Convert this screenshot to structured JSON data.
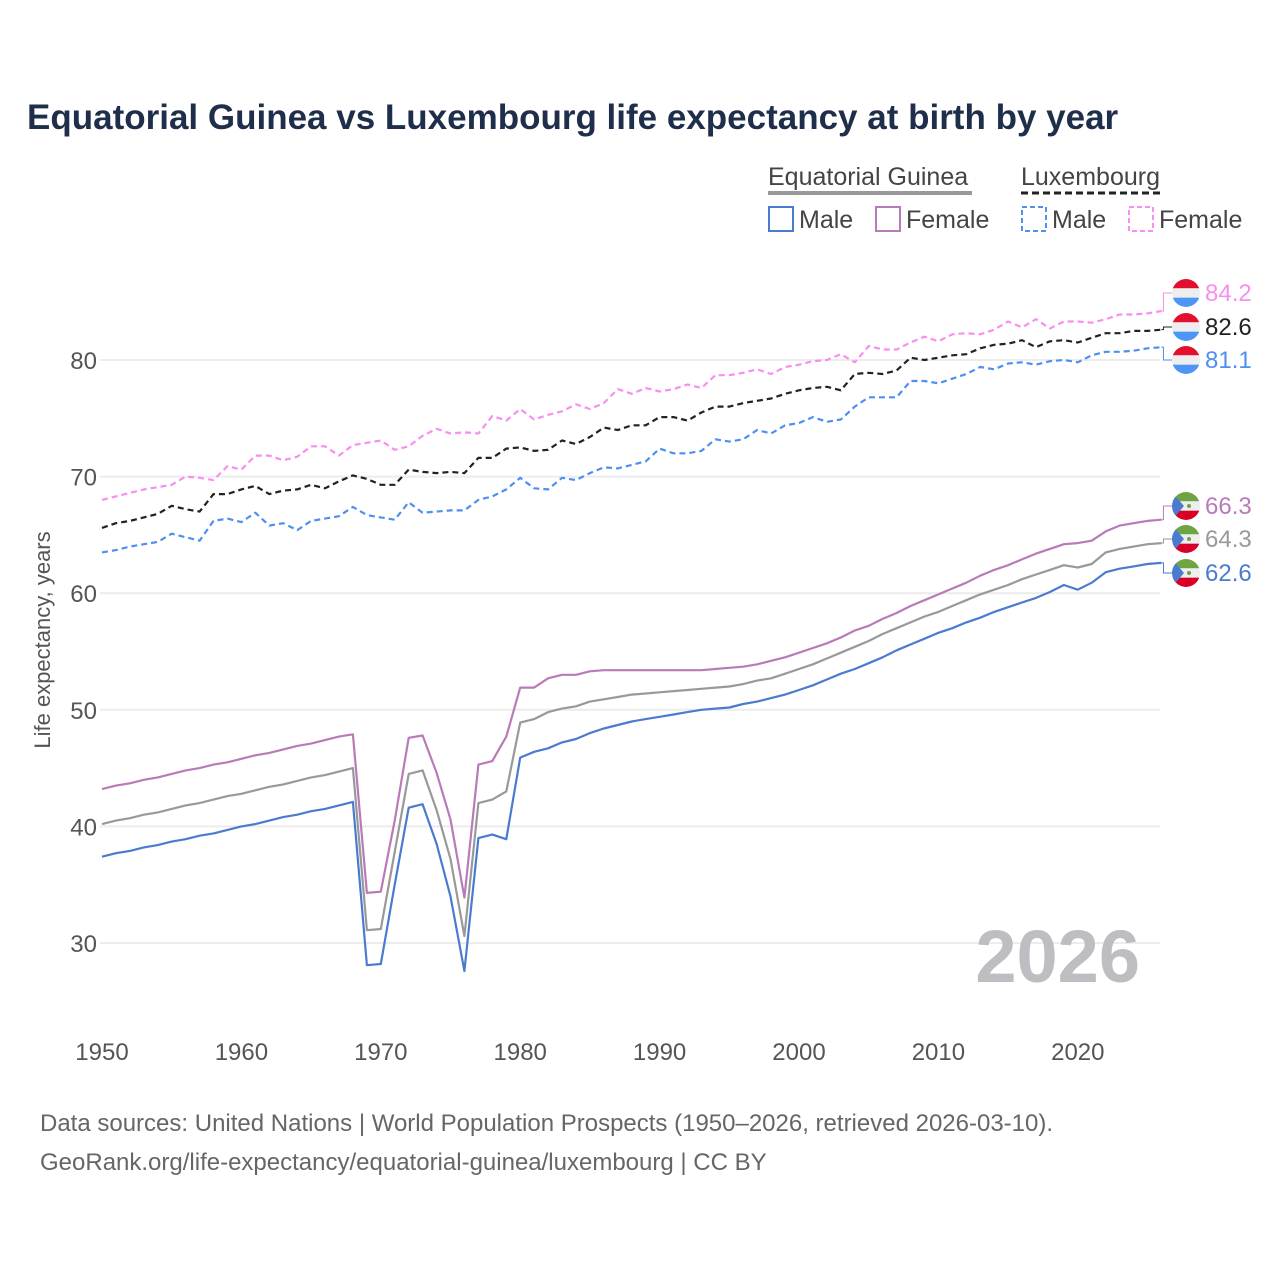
{
  "chart_data": {
    "type": "line",
    "title": "Equatorial Guinea vs Luxembourg life expectancy at birth by year",
    "xlabel": "",
    "ylabel": "Life expectancy, years",
    "xlim": [
      1950,
      2026
    ],
    "ylim": [
      24,
      88
    ],
    "x_ticks": [
      "1950",
      "1960",
      "1970",
      "1980",
      "1990",
      "2000",
      "2010",
      "2020"
    ],
    "y_ticks": [
      "30",
      "40",
      "50",
      "60",
      "70",
      "80"
    ],
    "grid": true,
    "year_watermark": "2026",
    "x_start": 1950,
    "legend": {
      "groups": [
        {
          "name": "Equatorial Guinea",
          "items": [
            "Male",
            "Female"
          ]
        },
        {
          "name": "Luxembourg",
          "items": [
            "Male",
            "Female"
          ]
        }
      ],
      "placement": "top-right"
    },
    "series": [
      {
        "name": "Luxembourg Female",
        "color": "#f78ef0",
        "dashed": true,
        "end_label": "84.2",
        "values": [
          68,
          68.3,
          68.6,
          68.9,
          69.1,
          69.3,
          70,
          69.9,
          69.7,
          70.9,
          70.6,
          71.8,
          71.8,
          71.4,
          71.7,
          72.6,
          72.6,
          71.8,
          72.7,
          72.9,
          73.1,
          72.3,
          72.6,
          73.5,
          74.1,
          73.7,
          73.8,
          73.7,
          75.2,
          74.8,
          75.8,
          74.9,
          75.3,
          75.6,
          76.2,
          75.8,
          76.3,
          77.5,
          77.1,
          77.6,
          77.3,
          77.5,
          77.9,
          77.6,
          78.7,
          78.7,
          78.9,
          79.2,
          78.8,
          79.4,
          79.6,
          79.9,
          80,
          80.5,
          79.8,
          81.2,
          80.9,
          80.9,
          81.5,
          82,
          81.6,
          82.2,
          82.3,
          82.2,
          82.6,
          83.3,
          82.8,
          83.5,
          82.7,
          83.3,
          83.3,
          83.2,
          83.5,
          83.9,
          83.9,
          84,
          84.2
        ]
      },
      {
        "name": "Luxembourg",
        "color": "#222222",
        "dashed": true,
        "end_label": "82.6",
        "values": [
          65.6,
          66,
          66.2,
          66.5,
          66.8,
          67.5,
          67.2,
          67,
          68.5,
          68.5,
          68.9,
          69.2,
          68.5,
          68.8,
          68.9,
          69.3,
          69,
          69.6,
          70.1,
          69.8,
          69.3,
          69.3,
          70.6,
          70.4,
          70.3,
          70.4,
          70.3,
          71.6,
          71.6,
          72.4,
          72.5,
          72.2,
          72.3,
          73.1,
          72.8,
          73.4,
          74.2,
          74,
          74.4,
          74.4,
          75.1,
          75.1,
          74.8,
          75.5,
          76,
          76,
          76.3,
          76.5,
          76.7,
          77.1,
          77.4,
          77.6,
          77.7,
          77.4,
          78.8,
          78.9,
          78.8,
          79.1,
          80.2,
          80,
          80.2,
          80.4,
          80.5,
          81,
          81.3,
          81.4,
          81.7,
          81.1,
          81.6,
          81.7,
          81.5,
          81.9,
          82.3,
          82.3,
          82.5,
          82.5,
          82.6
        ]
      },
      {
        "name": "Luxembourg Male",
        "color": "#4d90f0",
        "dashed": true,
        "end_label": "81.1",
        "values": [
          63.5,
          63.7,
          64,
          64.2,
          64.4,
          65.1,
          64.8,
          64.5,
          66.2,
          66.4,
          66.1,
          66.9,
          65.8,
          66,
          65.4,
          66.2,
          66.4,
          66.6,
          67.4,
          66.7,
          66.5,
          66.3,
          67.8,
          66.9,
          67,
          67.1,
          67.1,
          68,
          68.3,
          68.9,
          69.9,
          69,
          68.9,
          69.9,
          69.7,
          70.3,
          70.8,
          70.7,
          71,
          71.3,
          72.4,
          72,
          72,
          72.2,
          73.2,
          73,
          73.2,
          74,
          73.7,
          74.4,
          74.6,
          75.1,
          74.7,
          74.9,
          76,
          76.8,
          76.8,
          76.8,
          78.2,
          78.2,
          78,
          78.4,
          78.8,
          79.4,
          79.2,
          79.7,
          79.8,
          79.6,
          79.9,
          80,
          79.8,
          80.4,
          80.7,
          80.7,
          80.8,
          81,
          81.1
        ]
      },
      {
        "name": "Equatorial Guinea Female",
        "color": "#b87bb8",
        "dashed": false,
        "end_label": "66.3",
        "values": [
          43.2,
          43.5,
          43.7,
          44,
          44.2,
          44.5,
          44.8,
          45,
          45.3,
          45.5,
          45.8,
          46.1,
          46.3,
          46.6,
          46.9,
          47.1,
          47.4,
          47.7,
          47.9,
          34.3,
          34.4,
          40.5,
          47.6,
          47.8,
          44.6,
          40.6,
          33.9,
          45.3,
          45.6,
          47.7,
          51.9,
          51.9,
          52.7,
          53,
          53,
          53.3,
          53.4,
          53.4,
          53.4,
          53.4,
          53.4,
          53.4,
          53.4,
          53.4,
          53.5,
          53.6,
          53.7,
          53.9,
          54.2,
          54.5,
          54.9,
          55.3,
          55.7,
          56.2,
          56.8,
          57.2,
          57.8,
          58.3,
          58.9,
          59.4,
          59.9,
          60.4,
          60.9,
          61.5,
          62,
          62.4,
          62.9,
          63.4,
          63.8,
          64.2,
          64.3,
          64.5,
          65.3,
          65.8,
          66,
          66.2,
          66.3
        ]
      },
      {
        "name": "Equatorial Guinea",
        "color": "#999999",
        "dashed": false,
        "end_label": "64.3",
        "values": [
          40.2,
          40.5,
          40.7,
          41,
          41.2,
          41.5,
          41.8,
          42,
          42.3,
          42.6,
          42.8,
          43.1,
          43.4,
          43.6,
          43.9,
          44.2,
          44.4,
          44.7,
          45,
          31.1,
          31.2,
          37.8,
          44.5,
          44.8,
          41.4,
          37.2,
          30.6,
          42,
          42.3,
          43,
          48.9,
          49.2,
          49.8,
          50.1,
          50.3,
          50.7,
          50.9,
          51.1,
          51.3,
          51.4,
          51.5,
          51.6,
          51.7,
          51.8,
          51.9,
          52,
          52.2,
          52.5,
          52.7,
          53.1,
          53.5,
          53.9,
          54.4,
          54.9,
          55.4,
          55.9,
          56.5,
          57,
          57.5,
          58,
          58.4,
          58.9,
          59.4,
          59.9,
          60.3,
          60.7,
          61.2,
          61.6,
          62,
          62.4,
          62.2,
          62.5,
          63.5,
          63.8,
          64,
          64.2,
          64.3
        ]
      },
      {
        "name": "Equatorial Guinea Male",
        "color": "#4a7bd0",
        "dashed": false,
        "end_label": "62.6",
        "values": [
          37.4,
          37.7,
          37.9,
          38.2,
          38.4,
          38.7,
          38.9,
          39.2,
          39.4,
          39.7,
          40,
          40.2,
          40.5,
          40.8,
          41,
          41.3,
          41.5,
          41.8,
          42.1,
          28.1,
          28.2,
          35,
          41.6,
          41.9,
          38.5,
          34,
          27.6,
          39,
          39.3,
          38.9,
          45.9,
          46.4,
          46.7,
          47.2,
          47.5,
          48,
          48.4,
          48.7,
          49,
          49.2,
          49.4,
          49.6,
          49.8,
          50,
          50.1,
          50.2,
          50.5,
          50.7,
          51,
          51.3,
          51.7,
          52.1,
          52.6,
          53.1,
          53.5,
          54,
          54.5,
          55.1,
          55.6,
          56.1,
          56.6,
          57,
          57.5,
          57.9,
          58.4,
          58.8,
          59.2,
          59.6,
          60.1,
          60.7,
          60.3,
          60.9,
          61.8,
          62.1,
          62.3,
          62.5,
          62.6
        ]
      }
    ],
    "source_lines": [
      "Data sources: United Nations | World Population Prospects (1950–2026, retrieved 2026-03-10).",
      "GeoRank.org/life-expectancy/equatorial-guinea/luxembourg | CC BY"
    ]
  }
}
